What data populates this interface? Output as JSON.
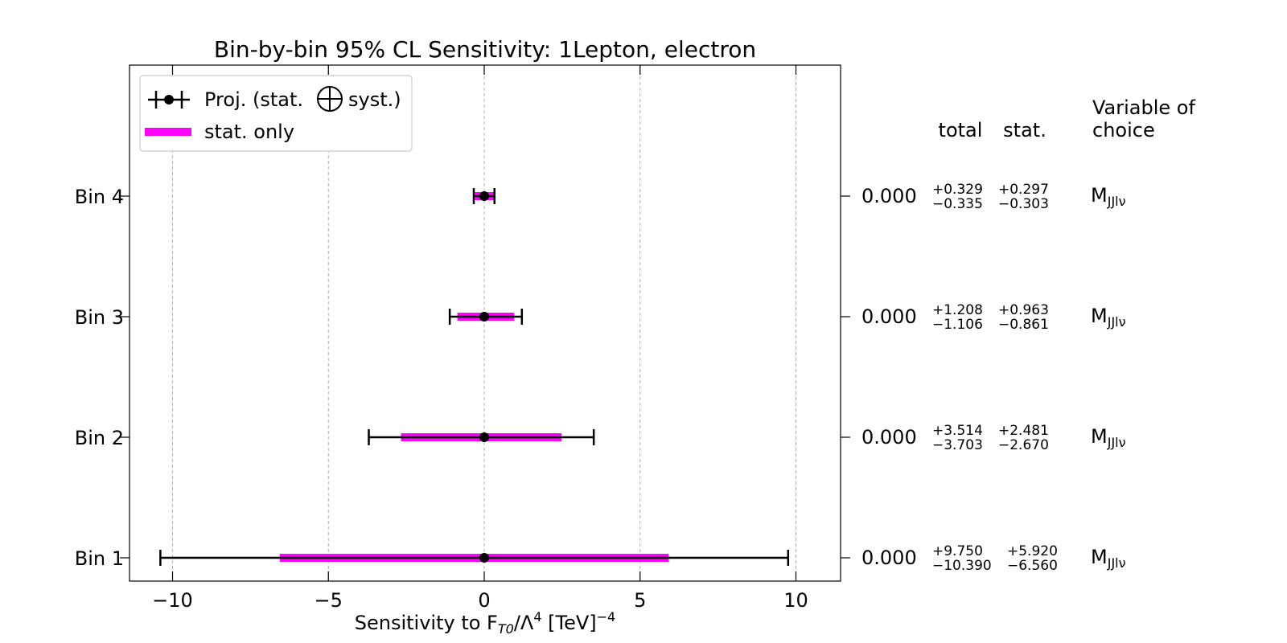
{
  "chart_data": {
    "type": "errorbar",
    "title": "Bin-by-bin 95% CL Sensitivity: 1Lepton, electron",
    "xlabel": {
      "prefix": "Sensitivity to F",
      "sub": "T0",
      "mid": "/Λ",
      "sup1": "4",
      "unit": " [TeV]",
      "sup2": "−4"
    },
    "xlim": [
      -10.2,
      10.2
    ],
    "xticks": [
      -10,
      -5,
      0,
      5,
      10
    ],
    "xtick_labels": [
      "−10",
      "−5",
      "0",
      "5",
      "10"
    ],
    "grid_x": true,
    "legend": {
      "placement": "top-left",
      "entries": [
        {
          "pre": "Proj. (stat.",
          "post": "syst.)"
        },
        {
          "label": "stat. only"
        }
      ]
    },
    "colors": {
      "total": "#000000",
      "stat": "#ff00ff",
      "point": "#000000",
      "grid": "#b0b0b0"
    },
    "column_headers": {
      "total": "total",
      "stat": "stat.",
      "variable": [
        "Variable of",
        "choice"
      ]
    },
    "bins": [
      {
        "label": "Bin 4",
        "central": 0.0,
        "central_text": "0.000",
        "total_up": 0.329,
        "total_down": -0.335,
        "stat_up": 0.297,
        "stat_down": -0.303,
        "total_up_text": "+0.329",
        "total_down_text": "−0.335",
        "stat_up_text": "+0.297",
        "stat_down_text": "−0.303",
        "variable": "M",
        "variable_sub": "JJlν"
      },
      {
        "label": "Bin 3",
        "central": 0.0,
        "central_text": "0.000",
        "total_up": 1.208,
        "total_down": -1.106,
        "stat_up": 0.963,
        "stat_down": -0.861,
        "total_up_text": "+1.208",
        "total_down_text": "−1.106",
        "stat_up_text": "+0.963",
        "stat_down_text": "−0.861",
        "variable": "M",
        "variable_sub": "JJlν"
      },
      {
        "label": "Bin 2",
        "central": 0.0,
        "central_text": "0.000",
        "total_up": 3.514,
        "total_down": -3.703,
        "stat_up": 2.481,
        "stat_down": -2.67,
        "total_up_text": "+3.514",
        "total_down_text": "−3.703",
        "stat_up_text": "+2.481",
        "stat_down_text": "−2.670",
        "variable": "M",
        "variable_sub": "JJlν"
      },
      {
        "label": "Bin 1",
        "central": 0.0,
        "central_text": "0.000",
        "total_up": 9.75,
        "total_down": -10.39,
        "stat_up": 5.92,
        "stat_down": -6.56,
        "total_up_text": "+9.750",
        "total_down_text": "−10.390",
        "stat_up_text": "+5.920",
        "stat_down_text": "−6.560",
        "variable": "M",
        "variable_sub": "JJlν"
      }
    ]
  }
}
